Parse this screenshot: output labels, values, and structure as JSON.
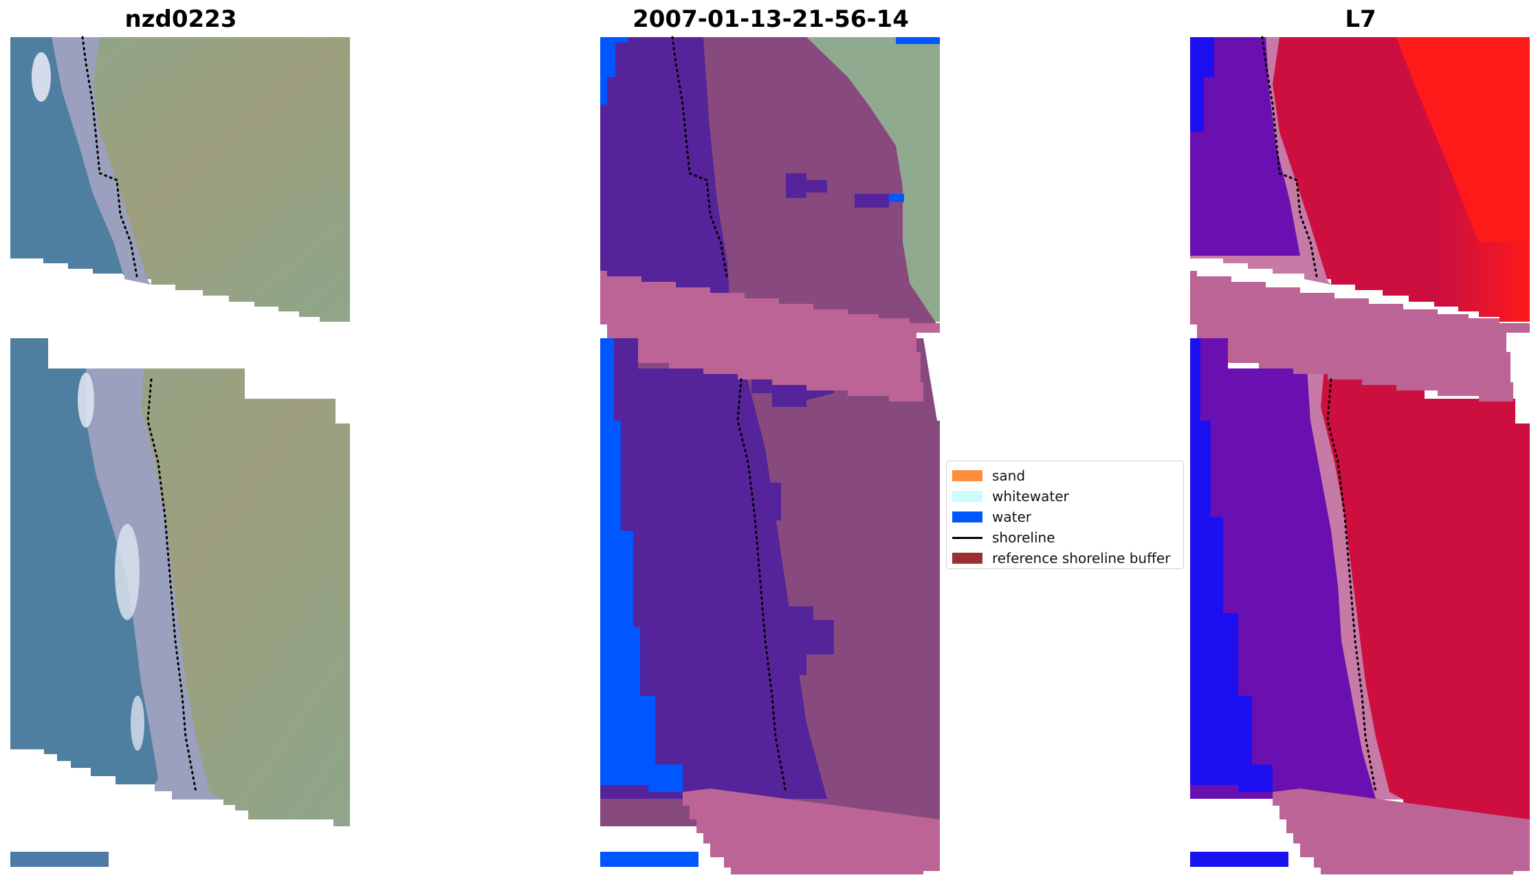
{
  "panels": [
    {
      "title": "nzd0223",
      "kind": "rgb",
      "colors": {
        "ocean": "#4f7fa0",
        "ocean_dark": "#3f6f93",
        "surf": "#dbe2ef",
        "beach": "#9aa0bd",
        "land": "#8ea68a",
        "land_alt": "#9d9f7e",
        "scale_bar": "#4d7aa6"
      }
    },
    {
      "title": "2007-01-13-21-56-14",
      "kind": "classified",
      "colors": {
        "water": "#0057ff",
        "beach_class": "#55249b",
        "land": "#884a7e",
        "buffer": "#bb6495",
        "land_unmasked": "#90aa90",
        "scale_bar": "#0057ff"
      }
    },
    {
      "title": "L7",
      "kind": "index",
      "colors": {
        "ocean": "#1d10f0",
        "beach": "#6a0fb0",
        "surf": "#c77aa6",
        "land": "#cc0f3f",
        "land_far": "#ff1a1a",
        "buffer": "#bb6495",
        "scale_bar": "#1a12ee"
      }
    }
  ],
  "legend": {
    "items": [
      {
        "label": "sand",
        "color": "#ff8c3c",
        "kind": "patch"
      },
      {
        "label": "whitewater",
        "color": "#ccfcfd",
        "kind": "patch"
      },
      {
        "label": "water",
        "color": "#0057ff",
        "kind": "patch"
      },
      {
        "label": "shoreline",
        "color": "#000000",
        "kind": "line"
      },
      {
        "label": "reference shoreline buffer",
        "color": "#9c2f33",
        "kind": "patch"
      }
    ]
  }
}
